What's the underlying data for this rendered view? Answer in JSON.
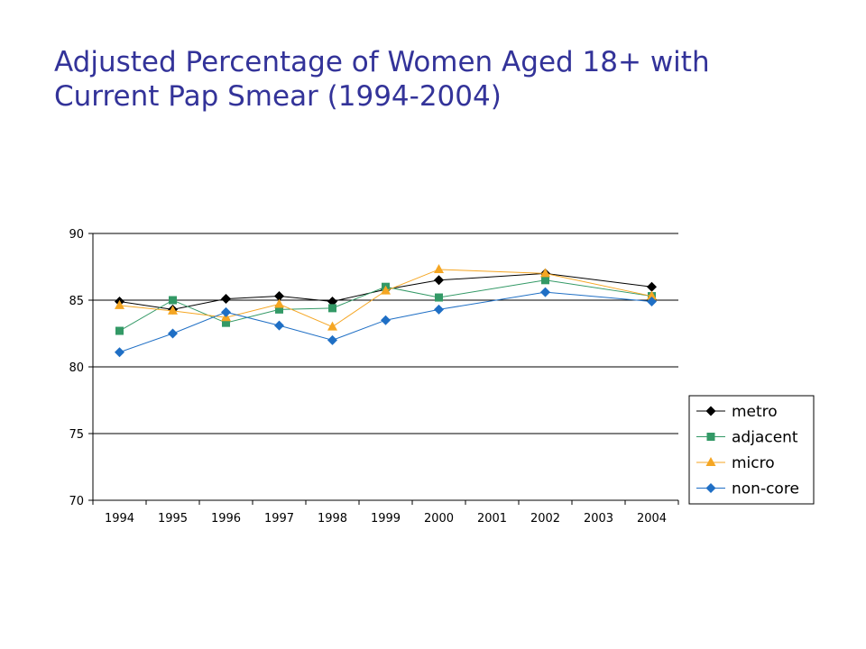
{
  "title": {
    "line1": "Adjusted Percentage of Women Aged 18+ with",
    "line2": "Current Pap Smear (1994-2004)"
  },
  "chart_data": {
    "type": "line",
    "title": "Adjusted Percentage of Women Aged 18+ with Current Pap Smear (1994-2004)",
    "categories": [
      "1994",
      "1995",
      "1996",
      "1997",
      "1998",
      "1999",
      "2000",
      "2001",
      "2002",
      "2003",
      "2004"
    ],
    "ylim": [
      70,
      90
    ],
    "yticks": [
      70,
      75,
      80,
      85,
      90
    ],
    "grid": "horizontal",
    "legend": "right",
    "series": [
      {
        "name": "metro",
        "color": "#000000",
        "marker": "diamond",
        "values": [
          84.9,
          84.3,
          85.1,
          85.3,
          84.9,
          85.8,
          86.5,
          null,
          87.0,
          null,
          86.0
        ]
      },
      {
        "name": "adjacent",
        "color": "#339966",
        "marker": "square",
        "values": [
          82.7,
          85.0,
          83.3,
          84.3,
          84.4,
          86.0,
          85.2,
          null,
          86.5,
          null,
          85.3
        ]
      },
      {
        "name": "micro",
        "color": "#F5A623",
        "marker": "triangle",
        "values": [
          84.6,
          84.2,
          83.7,
          84.7,
          83.0,
          85.7,
          87.3,
          null,
          87.0,
          null,
          85.3
        ]
      },
      {
        "name": "non-core",
        "color": "#1F6FC5",
        "marker": "diamond",
        "values": [
          81.1,
          82.5,
          84.1,
          83.1,
          82.0,
          83.5,
          84.3,
          null,
          85.6,
          null,
          84.9
        ]
      }
    ]
  }
}
